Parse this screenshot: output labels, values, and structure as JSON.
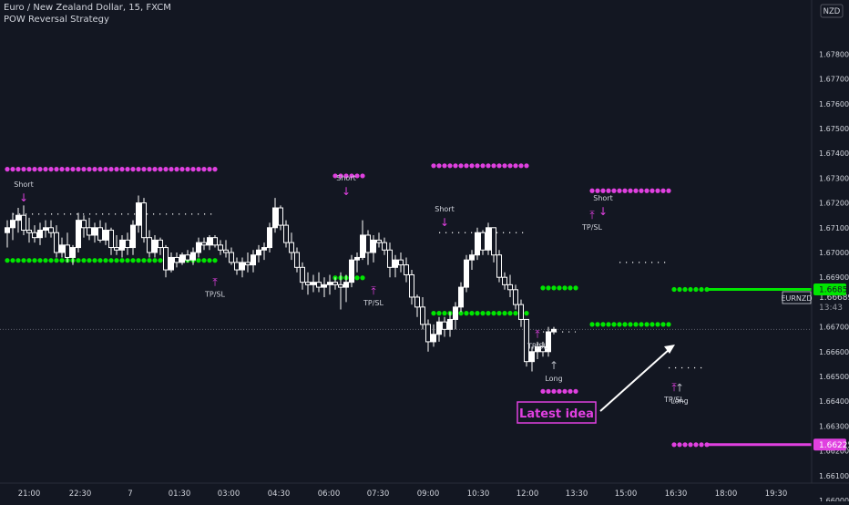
{
  "header": {
    "title": "Euro / New Zealand Dollar, 15, FXCM",
    "indicator": "POW Reversal Strategy"
  },
  "currency_badge": "NZD",
  "price_tag": {
    "symbol": "EURNZD",
    "price": "1.66689",
    "countdown": "13:43"
  },
  "level_tags": {
    "green": "1.66851",
    "magenta": "1.66225"
  },
  "callout": "Latest idea",
  "colors": {
    "background": "#131722",
    "candle": "#ffffff",
    "green": "#00e600",
    "magenta": "#e040e0",
    "text": "#d1d4dc",
    "grey_signal": "#b2b5be"
  },
  "chart_data": {
    "type": "candlestick",
    "y_axis": {
      "ylim": [
        1.6595,
        1.6794
      ],
      "ticks": [
        "1.67800",
        "1.67700",
        "1.67600",
        "1.67500",
        "1.67400",
        "1.67300",
        "1.67200",
        "1.67100",
        "1.67000",
        "1.66900",
        "1.66800",
        "1.66700",
        "1.66600",
        "1.66500",
        "1.66400",
        "1.66300",
        "1.66200",
        "1.66100",
        "1.66000"
      ]
    },
    "x_axis": {
      "labels": [
        "21:00",
        "22:30",
        "7",
        "01:30",
        "03:00",
        "04:30",
        "06:00",
        "07:30",
        "09:00",
        "10:30",
        "12:00",
        "13:30",
        "15:00",
        "16:30",
        "18:00",
        "19:30"
      ]
    },
    "candles": [
      [
        1.6708,
        1.6713,
        1.6702,
        1.671
      ],
      [
        1.671,
        1.6716,
        1.6705,
        1.6713
      ],
      [
        1.6713,
        1.6718,
        1.6708,
        1.6715
      ],
      [
        1.6715,
        1.6719,
        1.6707,
        1.6709
      ],
      [
        1.6709,
        1.6714,
        1.6704,
        1.6708
      ],
      [
        1.6708,
        1.6711,
        1.6704,
        1.6706
      ],
      [
        1.6706,
        1.6712,
        1.6703,
        1.6709
      ],
      [
        1.6709,
        1.6713,
        1.6706,
        1.671
      ],
      [
        1.671,
        1.6713,
        1.6706,
        1.6708
      ],
      [
        1.6708,
        1.6711,
        1.6698,
        1.67
      ],
      [
        1.67,
        1.6706,
        1.6698,
        1.6703
      ],
      [
        1.6703,
        1.6708,
        1.6696,
        1.6698
      ],
      [
        1.6698,
        1.6703,
        1.6695,
        1.6702
      ],
      [
        1.6702,
        1.6716,
        1.67,
        1.6713
      ],
      [
        1.6713,
        1.6715,
        1.6706,
        1.671
      ],
      [
        1.671,
        1.6714,
        1.6705,
        1.6707
      ],
      [
        1.6707,
        1.6712,
        1.6704,
        1.671
      ],
      [
        1.671,
        1.6713,
        1.6704,
        1.6705
      ],
      [
        1.6705,
        1.6712,
        1.6703,
        1.6709
      ],
      [
        1.6709,
        1.671,
        1.6699,
        1.6702
      ],
      [
        1.6702,
        1.6707,
        1.6699,
        1.6701
      ],
      [
        1.6701,
        1.6707,
        1.6698,
        1.6705
      ],
      [
        1.6705,
        1.6708,
        1.6699,
        1.6702
      ],
      [
        1.6702,
        1.6713,
        1.6699,
        1.6711
      ],
      [
        1.6711,
        1.6723,
        1.6708,
        1.672
      ],
      [
        1.672,
        1.6722,
        1.6704,
        1.6706
      ],
      [
        1.6706,
        1.6709,
        1.6698,
        1.67
      ],
      [
        1.67,
        1.6707,
        1.6698,
        1.6705
      ],
      [
        1.6705,
        1.6706,
        1.6699,
        1.6702
      ],
      [
        1.6702,
        1.6703,
        1.669,
        1.6693
      ],
      [
        1.6693,
        1.67,
        1.6692,
        1.6698
      ],
      [
        1.6698,
        1.67,
        1.6694,
        1.6696
      ],
      [
        1.6696,
        1.67,
        1.6695,
        1.6699
      ],
      [
        1.6699,
        1.6701,
        1.6696,
        1.6697
      ],
      [
        1.6697,
        1.6702,
        1.6695,
        1.67
      ],
      [
        1.67,
        1.6706,
        1.6698,
        1.6704
      ],
      [
        1.6704,
        1.6706,
        1.6701,
        1.6703
      ],
      [
        1.6703,
        1.6707,
        1.6701,
        1.6706
      ],
      [
        1.6706,
        1.6707,
        1.6702,
        1.6703
      ],
      [
        1.6703,
        1.6705,
        1.6699,
        1.6701
      ],
      [
        1.6701,
        1.6705,
        1.6698,
        1.67
      ],
      [
        1.67,
        1.6702,
        1.6695,
        1.6696
      ],
      [
        1.6696,
        1.6698,
        1.6691,
        1.6693
      ],
      [
        1.6693,
        1.6698,
        1.669,
        1.6696
      ],
      [
        1.6696,
        1.67,
        1.6692,
        1.6695
      ],
      [
        1.6695,
        1.6701,
        1.6692,
        1.6699
      ],
      [
        1.6699,
        1.6703,
        1.6696,
        1.6701
      ],
      [
        1.6701,
        1.6704,
        1.6697,
        1.6702
      ],
      [
        1.6702,
        1.6712,
        1.67,
        1.671
      ],
      [
        1.671,
        1.6722,
        1.6708,
        1.6718
      ],
      [
        1.6718,
        1.6719,
        1.6709,
        1.6711
      ],
      [
        1.6711,
        1.6713,
        1.6702,
        1.6704
      ],
      [
        1.6704,
        1.6708,
        1.6697,
        1.67
      ],
      [
        1.67,
        1.6702,
        1.6692,
        1.6694
      ],
      [
        1.6694,
        1.6696,
        1.6685,
        1.6688
      ],
      [
        1.6688,
        1.6692,
        1.6683,
        1.6687
      ],
      [
        1.6687,
        1.6691,
        1.6684,
        1.6688
      ],
      [
        1.6688,
        1.6692,
        1.6684,
        1.6686
      ],
      [
        1.6686,
        1.669,
        1.6682,
        1.6687
      ],
      [
        1.6687,
        1.6691,
        1.6683,
        1.6688
      ],
      [
        1.6688,
        1.669,
        1.6685,
        1.6687
      ],
      [
        1.6687,
        1.6692,
        1.6677,
        1.6686
      ],
      [
        1.6686,
        1.6691,
        1.668,
        1.6688
      ],
      [
        1.6688,
        1.6699,
        1.6686,
        1.6697
      ],
      [
        1.6697,
        1.67,
        1.6692,
        1.6698
      ],
      [
        1.6698,
        1.6713,
        1.6697,
        1.6707
      ],
      [
        1.6707,
        1.6709,
        1.6695,
        1.67
      ],
      [
        1.67,
        1.6707,
        1.6696,
        1.6705
      ],
      [
        1.6705,
        1.6708,
        1.6702,
        1.6704
      ],
      [
        1.6704,
        1.6706,
        1.6699,
        1.6701
      ],
      [
        1.6701,
        1.6704,
        1.669,
        1.6694
      ],
      [
        1.6694,
        1.6699,
        1.669,
        1.6697
      ],
      [
        1.6697,
        1.67,
        1.6692,
        1.6695
      ],
      [
        1.6695,
        1.6698,
        1.6688,
        1.6691
      ],
      [
        1.6691,
        1.6693,
        1.6679,
        1.6682
      ],
      [
        1.6682,
        1.6683,
        1.6674,
        1.6678
      ],
      [
        1.6678,
        1.6682,
        1.6669,
        1.6671
      ],
      [
        1.6671,
        1.6673,
        1.666,
        1.6664
      ],
      [
        1.6664,
        1.6671,
        1.6662,
        1.6667
      ],
      [
        1.6667,
        1.6674,
        1.6664,
        1.6672
      ],
      [
        1.6672,
        1.6674,
        1.6666,
        1.6669
      ],
      [
        1.6669,
        1.6676,
        1.6666,
        1.6673
      ],
      [
        1.6673,
        1.668,
        1.6669,
        1.6678
      ],
      [
        1.6678,
        1.6688,
        1.6676,
        1.6686
      ],
      [
        1.6686,
        1.6699,
        1.6684,
        1.6697
      ],
      [
        1.6697,
        1.6701,
        1.6693,
        1.6699
      ],
      [
        1.6699,
        1.671,
        1.6697,
        1.6708
      ],
      [
        1.6708,
        1.6709,
        1.6699,
        1.6701
      ],
      [
        1.6701,
        1.6712,
        1.6699,
        1.671
      ],
      [
        1.671,
        1.671,
        1.6696,
        1.6699
      ],
      [
        1.6699,
        1.6701,
        1.6688,
        1.669
      ],
      [
        1.669,
        1.6692,
        1.6685,
        1.6687
      ],
      [
        1.6687,
        1.6691,
        1.6682,
        1.6685
      ],
      [
        1.6685,
        1.6687,
        1.6677,
        1.6679
      ],
      [
        1.6679,
        1.6681,
        1.667,
        1.6673
      ],
      [
        1.6673,
        1.6673,
        1.6654,
        1.6656
      ],
      [
        1.6656,
        1.6662,
        1.6652,
        1.666
      ],
      [
        1.666,
        1.6664,
        1.6657,
        1.6662
      ],
      [
        1.6662,
        1.6664,
        1.6658,
        1.666
      ],
      [
        1.666,
        1.667,
        1.6658,
        1.6668
      ],
      [
        1.6668,
        1.667,
        1.6667,
        1.6669
      ]
    ],
    "signal_lines": [
      {
        "color": "magenta",
        "y": 1.67336,
        "x_from": 0,
        "x_to": 38,
        "style": "dots"
      },
      {
        "color": "green",
        "y": 1.66968,
        "x_from": 0,
        "x_to": 38,
        "style": "dots"
      },
      {
        "color": "magenta",
        "y": 1.67309,
        "x_from": 60,
        "x_to": 65,
        "style": "dots"
      },
      {
        "color": "green",
        "y": 1.66898,
        "x_from": 60,
        "x_to": 65,
        "style": "dots"
      },
      {
        "color": "magenta",
        "y": 1.6735,
        "x_from": 78,
        "x_to": 95,
        "style": "dots"
      },
      {
        "color": "green",
        "y": 1.66755,
        "x_from": 78,
        "x_to": 95,
        "style": "dots"
      },
      {
        "color": "green",
        "y": 1.66857,
        "x_from": 98,
        "x_to": 104,
        "style": "dots"
      },
      {
        "color": "magenta",
        "y": 1.6644,
        "x_from": 98,
        "x_to": 104,
        "style": "dots"
      },
      {
        "color": "magenta",
        "y": 1.67249,
        "x_from": 107,
        "x_to": 121,
        "style": "dots"
      },
      {
        "color": "green",
        "y": 1.6671,
        "x_from": 107,
        "x_to": 121,
        "style": "dots"
      },
      {
        "color": "green",
        "y": 1.66851,
        "x_from": 122,
        "x_to": 128,
        "style": "dots"
      },
      {
        "color": "magenta",
        "y": 1.66225,
        "x_from": 122,
        "x_to": 128,
        "style": "dots"
      },
      {
        "color": "green",
        "y": 1.66851,
        "x_from": 128,
        "x_to": 146,
        "style": "solid"
      },
      {
        "color": "magenta",
        "y": 1.66225,
        "x_from": 128,
        "x_to": 146,
        "style": "solid"
      }
    ],
    "stop_lines": [
      {
        "y": 1.67155,
        "x_from": 1,
        "x_to": 38
      },
      {
        "y": 1.6708,
        "x_from": 79,
        "x_to": 95
      },
      {
        "y": 1.6668,
        "x_from": 98,
        "x_to": 104
      },
      {
        "y": 1.6696,
        "x_from": 112,
        "x_to": 121
      },
      {
        "y": 1.66535,
        "x_from": 121,
        "x_to": 128
      }
    ],
    "annotations": [
      {
        "kind": "short",
        "text": "Short",
        "x": 3,
        "y": 1.67265
      },
      {
        "kind": "short",
        "text": "Short",
        "x": 62,
        "y": 1.6729
      },
      {
        "kind": "short",
        "text": "Short",
        "x": 80,
        "y": 1.67165
      },
      {
        "kind": "short",
        "text": "Short",
        "x": 109,
        "y": 1.6721
      },
      {
        "kind": "long",
        "text": "Long",
        "x": 100,
        "y": 1.66515
      },
      {
        "kind": "long",
        "text": "Long",
        "x": 123,
        "y": 1.66425
      },
      {
        "kind": "tpsl",
        "text": "TP/SL",
        "x": 38,
        "y": 1.66855
      },
      {
        "kind": "tpsl",
        "text": "TP/SL",
        "x": 67,
        "y": 1.6682
      },
      {
        "kind": "tpsl",
        "text": "TP/SL",
        "x": 97,
        "y": 1.66645
      },
      {
        "kind": "tpsl",
        "text": "TP/SL",
        "x": 107,
        "y": 1.67125
      },
      {
        "kind": "tpsl",
        "text": "TP/SL",
        "x": 122,
        "y": 1.6643
      }
    ]
  }
}
